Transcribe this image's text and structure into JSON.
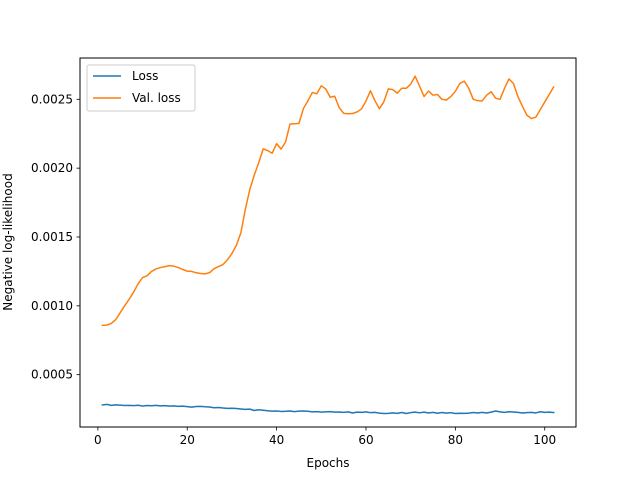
{
  "chart_data": {
    "type": "line",
    "xlabel": "Epochs",
    "ylabel": "Negative log-likelihood",
    "xlim": [
      -4,
      107
    ],
    "ylim": [
      0.00012,
      0.0028
    ],
    "xticks": [
      0,
      20,
      40,
      60,
      80,
      100
    ],
    "yticks": [
      0.0005,
      0.001,
      0.0015,
      0.002,
      0.0025
    ],
    "ytick_labels": [
      "0.0005",
      "0.0010",
      "0.0015",
      "0.0020",
      "0.0025"
    ],
    "grid": false,
    "legend_position": "top-left",
    "series": [
      {
        "name": "Loss",
        "color": "#1f77b4",
        "x": [
          1,
          2,
          3,
          4,
          5,
          6,
          7,
          8,
          9,
          10,
          11,
          12,
          13,
          14,
          15,
          16,
          17,
          18,
          19,
          20,
          21,
          22,
          23,
          24,
          25,
          26,
          27,
          28,
          29,
          30,
          31,
          32,
          33,
          34,
          35,
          36,
          37,
          38,
          39,
          40,
          41,
          42,
          43,
          44,
          45,
          46,
          47,
          48,
          49,
          50,
          51,
          52,
          53,
          54,
          55,
          56,
          57,
          58,
          59,
          60,
          61,
          62,
          63,
          64,
          65,
          66,
          67,
          68,
          69,
          70,
          71,
          72,
          73,
          74,
          75,
          76,
          77,
          78,
          79,
          80,
          81,
          82,
          83,
          84,
          85,
          86,
          87,
          88,
          89,
          90,
          91,
          92,
          93,
          94,
          95,
          96,
          97,
          98,
          99,
          100,
          101,
          102
        ],
        "values": [
          0.00028,
          0.000284,
          0.000277,
          0.000281,
          0.000279,
          0.000276,
          0.000277,
          0.000275,
          0.000278,
          0.000272,
          0.000276,
          0.000274,
          0.000277,
          0.000273,
          0.000275,
          0.000272,
          0.000273,
          0.00027,
          0.000272,
          0.000268,
          0.000264,
          0.000269,
          0.00027,
          0.000267,
          0.000265,
          0.00026,
          0.000262,
          0.000258,
          0.000255,
          0.000256,
          0.000254,
          0.000251,
          0.000248,
          0.00025,
          0.00024,
          0.000245,
          0.000242,
          0.000238,
          0.000235,
          0.000236,
          0.000233,
          0.000234,
          0.000236,
          0.000232,
          0.000235,
          0.000236,
          0.000234,
          0.00023,
          0.000232,
          0.000228,
          0.00023,
          0.000232,
          0.000228,
          0.000229,
          0.000226,
          0.00023,
          0.000222,
          0.000228,
          0.000226,
          0.00023,
          0.000224,
          0.000226,
          0.000221,
          0.000218,
          0.000219,
          0.000223,
          0.000219,
          0.000225,
          0.000218,
          0.000224,
          0.000228,
          0.000223,
          0.000228,
          0.000222,
          0.000226,
          0.00022,
          0.000225,
          0.000221,
          0.000224,
          0.000218,
          0.00022,
          0.000219,
          0.000221,
          0.000225,
          0.000222,
          0.000226,
          0.000222,
          0.000228,
          0.000236,
          0.00023,
          0.000226,
          0.000231,
          0.000229,
          0.000226,
          0.000222,
          0.000224,
          0.000226,
          0.000222,
          0.000231,
          0.000226,
          0.000228,
          0.000225
        ]
      },
      {
        "name": "Val. loss",
        "color": "#ff7f0e",
        "x": [
          1,
          2,
          3,
          4,
          5,
          6,
          7,
          8,
          9,
          10,
          11,
          12,
          13,
          14,
          15,
          16,
          17,
          18,
          19,
          20,
          21,
          22,
          23,
          24,
          25,
          26,
          27,
          28,
          29,
          30,
          31,
          32,
          33,
          34,
          35,
          36,
          37,
          38,
          39,
          40,
          41,
          42,
          43,
          44,
          45,
          46,
          47,
          48,
          49,
          50,
          51,
          52,
          53,
          54,
          55,
          56,
          57,
          58,
          59,
          60,
          61,
          62,
          63,
          64,
          65,
          66,
          67,
          68,
          69,
          70,
          71,
          72,
          73,
          74,
          75,
          76,
          77,
          78,
          79,
          80,
          81,
          82,
          83,
          84,
          85,
          86,
          87,
          88,
          89,
          90,
          91,
          92,
          93,
          94,
          95,
          96,
          97,
          98,
          99,
          100,
          101,
          102
        ],
        "values": [
          0.000858,
          0.00086,
          0.000872,
          0.0009,
          0.00095,
          0.001,
          0.001048,
          0.0011,
          0.00116,
          0.001205,
          0.001218,
          0.00125,
          0.001268,
          0.001278,
          0.001285,
          0.001292,
          0.001288,
          0.001278,
          0.001264,
          0.001252,
          0.00125,
          0.00124,
          0.001235,
          0.001232,
          0.001241,
          0.00127,
          0.001285,
          0.0013,
          0.001335,
          0.00138,
          0.00144,
          0.00153,
          0.0017,
          0.001845,
          0.00195,
          0.00204,
          0.00214,
          0.002128,
          0.002108,
          0.002178,
          0.002138,
          0.00219,
          0.00232,
          0.002322,
          0.002325,
          0.002433,
          0.002488,
          0.00255,
          0.00254,
          0.002598,
          0.002575,
          0.002515,
          0.002522,
          0.00244,
          0.002398,
          0.002395,
          0.002397,
          0.002408,
          0.00243,
          0.002488,
          0.002562,
          0.00249,
          0.002432,
          0.002482,
          0.002576,
          0.00257,
          0.002545,
          0.00258,
          0.00258,
          0.00261,
          0.002668,
          0.002595,
          0.00252,
          0.00256,
          0.00253,
          0.002535,
          0.0025,
          0.002495,
          0.00252,
          0.002558,
          0.002615,
          0.002632,
          0.00258,
          0.0025,
          0.00249,
          0.002488,
          0.00253,
          0.002555,
          0.002508,
          0.0025,
          0.00258,
          0.002648,
          0.002615,
          0.00252,
          0.00245,
          0.002385,
          0.00236,
          0.00237,
          0.002425,
          0.00248,
          0.002535,
          0.00259
        ]
      }
    ]
  }
}
